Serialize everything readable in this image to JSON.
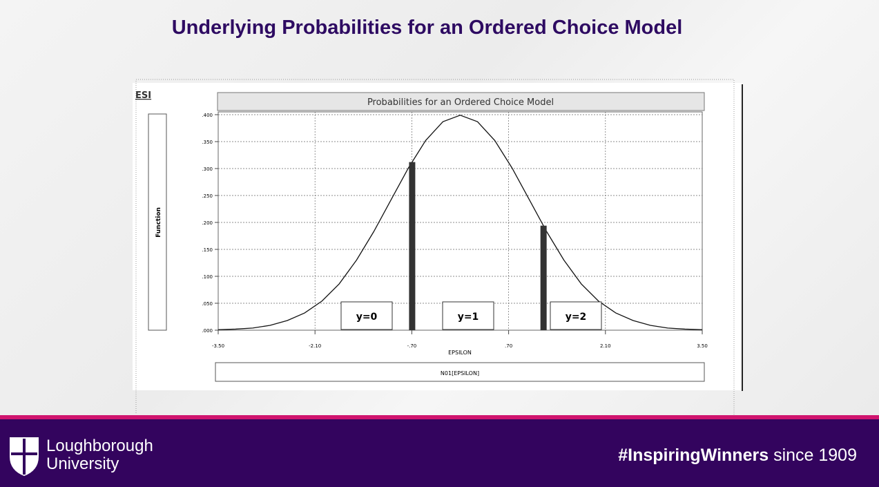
{
  "heading": "Underlying Probabilities for an Ordered Choice Model",
  "logo": "ESI",
  "chart_data": {
    "type": "line",
    "title": "Probabilities for an Ordered Choice Model",
    "x_label": "EPSILON",
    "y_label": "Function",
    "footer_label": "N01[EPSILON]",
    "curve": {
      "color": "#111111",
      "x": [
        -3.5,
        -3.25,
        -3,
        -2.75,
        -2.5,
        -2.25,
        -2,
        -1.75,
        -1.5,
        -1.25,
        -1,
        -0.75,
        -0.5,
        -0.25,
        0,
        0.25,
        0.5,
        0.75,
        1,
        1.25,
        1.5,
        1.75,
        2,
        2.25,
        2.5,
        2.75,
        3,
        3.25,
        3.5
      ],
      "values": [
        0.001,
        0.002,
        0.004,
        0.009,
        0.018,
        0.032,
        0.054,
        0.086,
        0.13,
        0.183,
        0.242,
        0.301,
        0.352,
        0.387,
        0.399,
        0.387,
        0.352,
        0.301,
        0.242,
        0.183,
        0.13,
        0.086,
        0.054,
        0.032,
        0.018,
        0.009,
        0.004,
        0.002,
        0.001
      ]
    },
    "thresholds": {
      "color": "#333333",
      "x": [
        -0.7,
        1.2
      ],
      "values": [
        0.312,
        0.194
      ]
    },
    "annotations": [
      "y=0",
      "y=1",
      "y=2"
    ],
    "xlim": [
      -3.5,
      3.5
    ],
    "ylim": [
      0,
      0.4
    ],
    "xticks": [
      {
        "value": -3.5,
        "label": "-3.50"
      },
      {
        "value": -2.1,
        "label": "-2.10"
      },
      {
        "value": -0.7,
        "label": "-.70"
      },
      {
        "value": 0.7,
        "label": ".70"
      },
      {
        "value": 2.1,
        "label": "2.10"
      },
      {
        "value": 3.5,
        "label": "3.50"
      }
    ],
    "yticks": [
      {
        "value": 0,
        "label": ".000"
      },
      {
        "value": 0.05,
        "label": ".050"
      },
      {
        "value": 0.1,
        "label": ".100"
      },
      {
        "value": 0.15,
        "label": ".150"
      },
      {
        "value": 0.2,
        "label": ".200"
      },
      {
        "value": 0.25,
        "label": ".250"
      },
      {
        "value": 0.3,
        "label": ".300"
      },
      {
        "value": 0.35,
        "label": ".350"
      },
      {
        "value": 0.4,
        "label": ".400"
      }
    ],
    "grid": true
  },
  "footer": {
    "university_line1": "Loughborough",
    "university_line2": "University",
    "hashtag": "#InspiringWinners",
    "since": "since 1909"
  }
}
